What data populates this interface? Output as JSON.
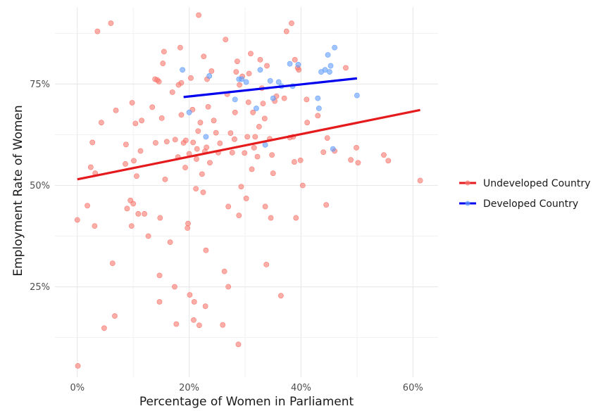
{
  "chart_data": {
    "type": "scatter",
    "xlabel": "Percentage of Women in Parliament",
    "ylabel": "Employment Rate of Women",
    "xlim": [
      -0.04,
      0.645
    ],
    "ylim": [
      0.027,
      0.94
    ],
    "x_ticks": [
      {
        "value": 0.0,
        "label": "0%"
      },
      {
        "value": 0.2,
        "label": "20%"
      },
      {
        "value": 0.4,
        "label": "40%"
      },
      {
        "value": 0.6,
        "label": "60%"
      }
    ],
    "y_ticks": [
      {
        "value": 0.25,
        "label": "25%"
      },
      {
        "value": 0.5,
        "label": "50%"
      },
      {
        "value": 0.75,
        "label": "75%"
      }
    ],
    "grid": true,
    "legend_position": "right",
    "series": [
      {
        "name": "Undeveloped Country",
        "color": "#e41a1c",
        "point_color": "#f8766d",
        "trend": {
          "x": [
            0.0,
            0.613
          ],
          "y": [
            0.515,
            0.686
          ]
        },
        "points": [
          [
            0.0,
            0.415
          ],
          [
            0.001,
            0.055
          ],
          [
            0.018,
            0.45
          ],
          [
            0.024,
            0.545
          ],
          [
            0.027,
            0.606
          ],
          [
            0.031,
            0.4
          ],
          [
            0.032,
            0.53
          ],
          [
            0.036,
            0.88
          ],
          [
            0.043,
            0.655
          ],
          [
            0.048,
            0.148
          ],
          [
            0.06,
            0.9
          ],
          [
            0.063,
            0.308
          ],
          [
            0.067,
            0.178
          ],
          [
            0.069,
            0.685
          ],
          [
            0.086,
            0.553
          ],
          [
            0.087,
            0.601
          ],
          [
            0.089,
            0.443
          ],
          [
            0.095,
            0.463
          ],
          [
            0.097,
            0.4
          ],
          [
            0.098,
            0.704
          ],
          [
            0.1,
            0.455
          ],
          [
            0.101,
            0.561
          ],
          [
            0.104,
            0.653
          ],
          [
            0.106,
            0.523
          ],
          [
            0.109,
            0.43
          ],
          [
            0.113,
            0.585
          ],
          [
            0.115,
            0.66
          ],
          [
            0.12,
            0.43
          ],
          [
            0.127,
            0.375
          ],
          [
            0.134,
            0.693
          ],
          [
            0.139,
            0.762
          ],
          [
            0.14,
            0.605
          ],
          [
            0.143,
            0.76
          ],
          [
            0.146,
            0.756
          ],
          [
            0.147,
            0.213
          ],
          [
            0.147,
            0.278
          ],
          [
            0.148,
            0.42
          ],
          [
            0.151,
            0.666
          ],
          [
            0.153,
            0.801
          ],
          [
            0.155,
            0.83
          ],
          [
            0.157,
            0.515
          ],
          [
            0.16,
            0.608
          ],
          [
            0.166,
            0.36
          ],
          [
            0.17,
            0.73
          ],
          [
            0.174,
            0.25
          ],
          [
            0.175,
            0.613
          ],
          [
            0.177,
            0.158
          ],
          [
            0.18,
            0.57
          ],
          [
            0.181,
            0.748
          ],
          [
            0.184,
            0.84
          ],
          [
            0.186,
            0.674
          ],
          [
            0.186,
            0.753
          ],
          [
            0.19,
            0.605
          ],
          [
            0.193,
            0.544
          ],
          [
            0.194,
            0.611
          ],
          [
            0.197,
            0.395
          ],
          [
            0.198,
            0.406
          ],
          [
            0.2,
            0.578
          ],
          [
            0.201,
            0.23
          ],
          [
            0.203,
            0.765
          ],
          [
            0.206,
            0.687
          ],
          [
            0.207,
            0.606
          ],
          [
            0.208,
            0.168
          ],
          [
            0.209,
            0.213
          ],
          [
            0.212,
            0.492
          ],
          [
            0.213,
            0.565
          ],
          [
            0.214,
            0.59
          ],
          [
            0.216,
            0.634
          ],
          [
            0.217,
            0.92
          ],
          [
            0.218,
            0.155
          ],
          [
            0.22,
            0.655
          ],
          [
            0.223,
            0.528
          ],
          [
            0.225,
            0.483
          ],
          [
            0.226,
            0.818
          ],
          [
            0.228,
            0.584
          ],
          [
            0.229,
            0.202
          ],
          [
            0.23,
            0.34
          ],
          [
            0.231,
            0.594
          ],
          [
            0.232,
            0.762
          ],
          [
            0.234,
            0.694
          ],
          [
            0.237,
            0.556
          ],
          [
            0.24,
            0.782
          ],
          [
            0.244,
            0.66
          ],
          [
            0.248,
            0.63
          ],
          [
            0.252,
            0.581
          ],
          [
            0.255,
            0.604
          ],
          [
            0.26,
            0.156
          ],
          [
            0.263,
            0.288
          ],
          [
            0.265,
            0.86
          ],
          [
            0.268,
            0.725
          ],
          [
            0.27,
            0.448
          ],
          [
            0.27,
            0.25
          ],
          [
            0.274,
            0.629
          ],
          [
            0.277,
            0.581
          ],
          [
            0.281,
            0.614
          ],
          [
            0.282,
            0.68
          ],
          [
            0.284,
            0.78
          ],
          [
            0.286,
            0.806
          ],
          [
            0.288,
            0.108
          ],
          [
            0.289,
            0.426
          ],
          [
            0.29,
            0.748
          ],
          [
            0.293,
            0.497
          ],
          [
            0.295,
            0.769
          ],
          [
            0.299,
            0.58
          ],
          [
            0.302,
            0.468
          ],
          [
            0.304,
            0.62
          ],
          [
            0.306,
            0.705
          ],
          [
            0.307,
            0.776
          ],
          [
            0.31,
            0.825
          ],
          [
            0.312,
            0.54
          ],
          [
            0.314,
            0.68
          ],
          [
            0.316,
            0.593
          ],
          [
            0.318,
            0.62
          ],
          [
            0.322,
            0.571
          ],
          [
            0.325,
            0.645
          ],
          [
            0.327,
            0.81
          ],
          [
            0.33,
            0.74
          ],
          [
            0.332,
            0.702
          ],
          [
            0.335,
            0.665
          ],
          [
            0.336,
            0.448
          ],
          [
            0.338,
            0.305
          ],
          [
            0.339,
            0.795
          ],
          [
            0.344,
            0.615
          ],
          [
            0.346,
            0.42
          ],
          [
            0.348,
            0.575
          ],
          [
            0.35,
            0.53
          ],
          [
            0.353,
            0.708
          ],
          [
            0.356,
            0.72
          ],
          [
            0.364,
            0.228
          ],
          [
            0.37,
            0.715
          ],
          [
            0.374,
            0.88
          ],
          [
            0.38,
            0.618
          ],
          [
            0.383,
            0.9
          ],
          [
            0.386,
            0.62
          ],
          [
            0.388,
            0.558
          ],
          [
            0.389,
            0.81
          ],
          [
            0.391,
            0.42
          ],
          [
            0.394,
            0.79
          ],
          [
            0.396,
            0.785
          ],
          [
            0.399,
            0.562
          ],
          [
            0.403,
            0.5
          ],
          [
            0.41,
            0.712
          ],
          [
            0.411,
            0.655
          ],
          [
            0.43,
            0.672
          ],
          [
            0.44,
            0.582
          ],
          [
            0.445,
            0.452
          ],
          [
            0.447,
            0.617
          ],
          [
            0.46,
            0.585
          ],
          [
            0.48,
            0.79
          ],
          [
            0.489,
            0.563
          ],
          [
            0.499,
            0.593
          ],
          [
            0.502,
            0.556
          ],
          [
            0.548,
            0.575
          ],
          [
            0.556,
            0.561
          ],
          [
            0.613,
            0.512
          ]
        ]
      },
      {
        "name": "Developed Country",
        "color": "#0000ee",
        "point_color": "#619cff",
        "trend": {
          "x": [
            0.19,
            0.5
          ],
          "y": [
            0.718,
            0.764
          ]
        },
        "points": [
          [
            0.188,
            0.785
          ],
          [
            0.2,
            0.68
          ],
          [
            0.23,
            0.62
          ],
          [
            0.236,
            0.77
          ],
          [
            0.282,
            0.712
          ],
          [
            0.289,
            0.762
          ],
          [
            0.294,
            0.762
          ],
          [
            0.302,
            0.755
          ],
          [
            0.32,
            0.69
          ],
          [
            0.327,
            0.785
          ],
          [
            0.336,
            0.6
          ],
          [
            0.345,
            0.758
          ],
          [
            0.35,
            0.715
          ],
          [
            0.36,
            0.755
          ],
          [
            0.365,
            0.745
          ],
          [
            0.38,
            0.8
          ],
          [
            0.385,
            0.745
          ],
          [
            0.395,
            0.798
          ],
          [
            0.43,
            0.715
          ],
          [
            0.432,
            0.69
          ],
          [
            0.436,
            0.78
          ],
          [
            0.443,
            0.785
          ],
          [
            0.448,
            0.822
          ],
          [
            0.451,
            0.78
          ],
          [
            0.453,
            0.795
          ],
          [
            0.457,
            0.59
          ],
          [
            0.46,
            0.84
          ],
          [
            0.5,
            0.722
          ]
        ]
      }
    ]
  }
}
